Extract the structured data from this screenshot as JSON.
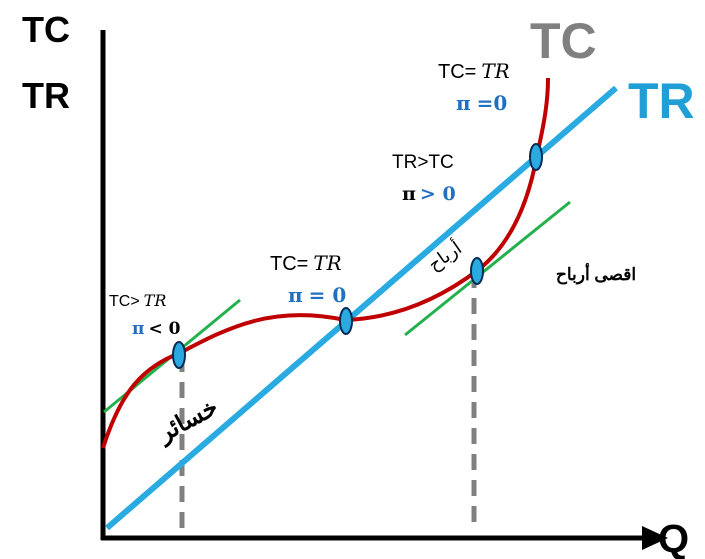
{
  "axes": {
    "y_label_top": "TC",
    "y_label_bottom": "TR",
    "x_label": "Q"
  },
  "curves": {
    "tc_label": "TC",
    "tr_label": "TR"
  },
  "annotations": {
    "left": {
      "line1_prefix": "TC>",
      "line1_var": "TR",
      "line2_pi": "π",
      "line2_rest": "< 0"
    },
    "middle": {
      "line1_prefix": "TC=",
      "line1_var": "TR",
      "line2_pi": "π",
      "line2_rest": "= 0"
    },
    "upper_mid": {
      "line1": "TR>TC",
      "line2_pi": "π",
      "line2_rest": "> 0"
    },
    "top": {
      "line1_prefix": "TC=",
      "line1_var": "TR",
      "line2_pi": "π",
      "line2_rest": "=0"
    },
    "losses": "خسائر",
    "profits": "أرباح",
    "max_profit": "اقصى أرباح"
  },
  "colors": {
    "tc_curve": "#c00000",
    "tr_line": "#29abe2",
    "tangent": "#22b14c",
    "axis": "#000000",
    "tc_label": "#808080",
    "tr_label": "#1f9fd6",
    "pi_blue": "#1f6fc2",
    "dashed": "#808080",
    "marker_fill": "#29abe2"
  }
}
